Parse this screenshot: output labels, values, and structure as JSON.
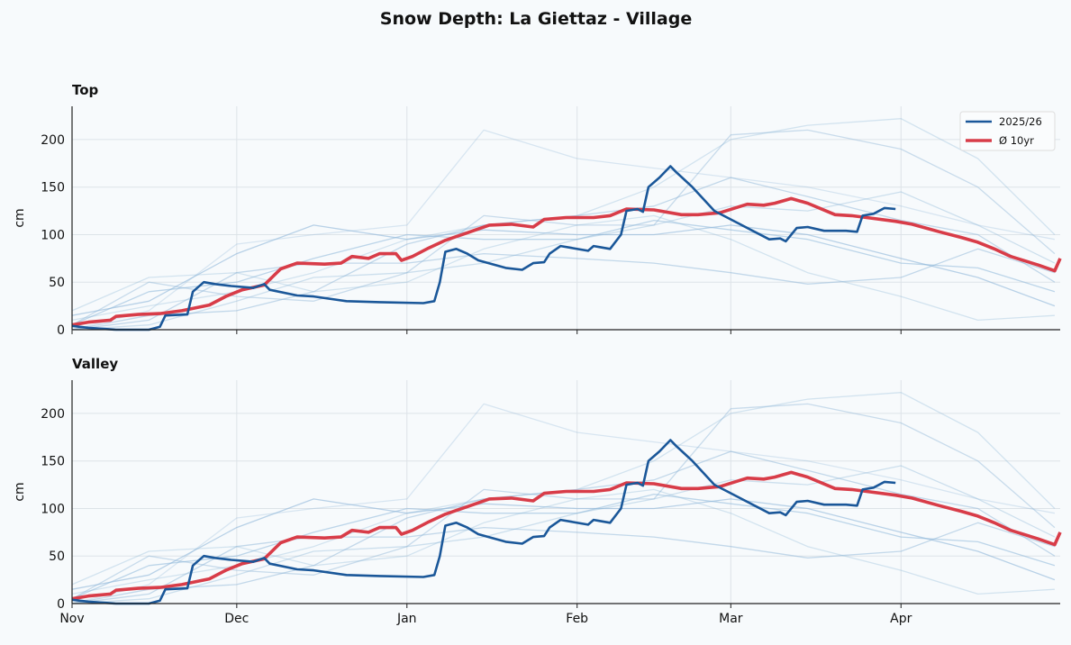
{
  "chart_data": {
    "type": "line",
    "title": "Snow Depth: La Giettaz - Village",
    "ylabel": "cm",
    "xlabel": "",
    "ylim": [
      0,
      235
    ],
    "xlim": [
      "2025-11-01",
      "2026-04-30"
    ],
    "yticks": [
      0,
      50,
      100,
      150,
      200
    ],
    "xticks": [
      {
        "date": "2025-11-01",
        "label": "Nov"
      },
      {
        "date": "2025-12-01",
        "label": "Dec"
      },
      {
        "date": "2026-01-01",
        "label": "Jan"
      },
      {
        "date": "2026-02-01",
        "label": "Feb"
      },
      {
        "date": "2026-03-01",
        "label": "Mar"
      },
      {
        "date": "2026-04-01",
        "label": "Apr"
      }
    ],
    "grid": true,
    "legend_position": "top-right",
    "panels": [
      {
        "title": "Top"
      },
      {
        "title": "Valley"
      }
    ],
    "colors": {
      "current": "#1a5799",
      "average": "#d83c48",
      "history": "#8db6d8",
      "grid": "#dde3e8"
    },
    "series": [
      {
        "name": "2025/26",
        "role": "current",
        "points": [
          [
            "2025-11-01",
            4
          ],
          [
            "2025-11-04",
            2
          ],
          [
            "2025-11-09",
            0
          ],
          [
            "2025-11-15",
            0
          ],
          [
            "2025-11-17",
            3
          ],
          [
            "2025-11-18",
            15
          ],
          [
            "2025-11-22",
            16
          ],
          [
            "2025-11-23",
            40
          ],
          [
            "2025-11-25",
            50
          ],
          [
            "2025-11-27",
            48
          ],
          [
            "2025-11-30",
            46
          ],
          [
            "2025-12-04",
            44
          ],
          [
            "2025-12-06",
            48
          ],
          [
            "2025-12-07",
            42
          ],
          [
            "2025-12-12",
            36
          ],
          [
            "2025-12-15",
            35
          ],
          [
            "2025-12-21",
            30
          ],
          [
            "2025-12-27",
            29
          ],
          [
            "2026-01-04",
            28
          ],
          [
            "2026-01-06",
            30
          ],
          [
            "2026-01-07",
            50
          ],
          [
            "2026-01-08",
            82
          ],
          [
            "2026-01-10",
            85
          ],
          [
            "2026-01-12",
            80
          ],
          [
            "2026-01-14",
            73
          ],
          [
            "2026-01-19",
            65
          ],
          [
            "2026-01-22",
            63
          ],
          [
            "2026-01-24",
            70
          ],
          [
            "2026-01-26",
            71
          ],
          [
            "2026-01-27",
            80
          ],
          [
            "2026-01-29",
            88
          ],
          [
            "2026-01-31",
            86
          ],
          [
            "2026-02-03",
            83
          ],
          [
            "2026-02-04",
            88
          ],
          [
            "2026-02-05",
            87
          ],
          [
            "2026-02-07",
            85
          ],
          [
            "2026-02-09",
            100
          ],
          [
            "2026-02-10",
            125
          ],
          [
            "2026-02-12",
            127
          ],
          [
            "2026-02-13",
            124
          ],
          [
            "2026-02-14",
            150
          ],
          [
            "2026-02-16",
            160
          ],
          [
            "2026-02-18",
            172
          ],
          [
            "2026-02-19",
            166
          ],
          [
            "2026-02-22",
            150
          ],
          [
            "2026-02-26",
            125
          ],
          [
            "2026-03-03",
            110
          ],
          [
            "2026-03-08",
            95
          ],
          [
            "2026-03-10",
            96
          ],
          [
            "2026-03-11",
            93
          ],
          [
            "2026-03-13",
            107
          ],
          [
            "2026-03-15",
            108
          ],
          [
            "2026-03-18",
            104
          ],
          [
            "2026-03-22",
            104
          ],
          [
            "2026-03-24",
            103
          ],
          [
            "2026-03-25",
            120
          ],
          [
            "2026-03-27",
            122
          ],
          [
            "2026-03-29",
            128
          ],
          [
            "2026-03-31",
            127
          ]
        ]
      },
      {
        "name": "Ø 10yr",
        "role": "average",
        "points": [
          [
            "2025-11-01",
            5
          ],
          [
            "2025-11-04",
            8
          ],
          [
            "2025-11-08",
            10
          ],
          [
            "2025-11-09",
            14
          ],
          [
            "2025-11-13",
            16
          ],
          [
            "2025-11-17",
            17
          ],
          [
            "2025-11-21",
            20
          ],
          [
            "2025-11-26",
            26
          ],
          [
            "2025-11-29",
            35
          ],
          [
            "2025-12-02",
            42
          ],
          [
            "2025-12-06",
            47
          ],
          [
            "2025-12-09",
            64
          ],
          [
            "2025-12-12",
            70
          ],
          [
            "2025-12-17",
            69
          ],
          [
            "2025-12-20",
            70
          ],
          [
            "2025-12-22",
            77
          ],
          [
            "2025-12-25",
            75
          ],
          [
            "2025-12-27",
            80
          ],
          [
            "2025-12-30",
            80
          ],
          [
            "2025-12-31",
            73
          ],
          [
            "2026-01-02",
            77
          ],
          [
            "2026-01-05",
            86
          ],
          [
            "2026-01-08",
            94
          ],
          [
            "2026-01-12",
            102
          ],
          [
            "2026-01-16",
            110
          ],
          [
            "2026-01-20",
            111
          ],
          [
            "2026-01-24",
            108
          ],
          [
            "2026-01-26",
            116
          ],
          [
            "2026-01-30",
            118
          ],
          [
            "2026-02-04",
            118
          ],
          [
            "2026-02-07",
            120
          ],
          [
            "2026-02-10",
            127
          ],
          [
            "2026-02-15",
            126
          ],
          [
            "2026-02-20",
            121
          ],
          [
            "2026-02-23",
            121
          ],
          [
            "2026-02-27",
            123
          ],
          [
            "2026-03-04",
            132
          ],
          [
            "2026-03-07",
            131
          ],
          [
            "2026-03-09",
            133
          ],
          [
            "2026-03-12",
            138
          ],
          [
            "2026-03-15",
            133
          ],
          [
            "2026-03-20",
            121
          ],
          [
            "2026-03-23",
            120
          ],
          [
            "2026-03-27",
            117
          ],
          [
            "2026-03-31",
            114
          ],
          [
            "2026-04-03",
            111
          ],
          [
            "2026-04-08",
            103
          ],
          [
            "2026-04-12",
            97
          ],
          [
            "2026-04-15",
            92
          ],
          [
            "2026-04-18",
            85
          ],
          [
            "2026-04-21",
            77
          ],
          [
            "2026-04-26",
            68
          ],
          [
            "2026-04-29",
            62
          ],
          [
            "2026-04-30",
            75
          ]
        ]
      }
    ],
    "history_dates": [
      "2025-11-01",
      "2025-11-15",
      "2025-12-01",
      "2025-12-15",
      "2026-01-01",
      "2026-01-15",
      "2026-02-01",
      "2026-02-15",
      "2026-03-01",
      "2026-03-15",
      "2026-04-01",
      "2026-04-15",
      "2026-04-29"
    ],
    "history": [
      [
        10,
        25,
        40,
        60,
        95,
        110,
        120,
        150,
        200,
        215,
        222,
        180,
        100
      ],
      [
        5,
        50,
        35,
        30,
        60,
        120,
        110,
        110,
        205,
        210,
        190,
        150,
        80
      ],
      [
        0,
        20,
        90,
        100,
        110,
        210,
        180,
        170,
        160,
        150,
        130,
        110,
        95
      ],
      [
        15,
        30,
        80,
        110,
        95,
        105,
        100,
        100,
        110,
        100,
        75,
        55,
        25
      ],
      [
        0,
        10,
        60,
        70,
        70,
        80,
        75,
        70,
        60,
        48,
        55,
        85,
        60
      ],
      [
        5,
        40,
        50,
        75,
        100,
        95,
        95,
        115,
        105,
        95,
        70,
        65,
        40
      ],
      [
        0,
        5,
        30,
        55,
        60,
        70,
        95,
        110,
        130,
        125,
        145,
        110,
        70
      ],
      [
        20,
        55,
        60,
        40,
        50,
        85,
        110,
        120,
        95,
        60,
        35,
        10,
        15
      ],
      [
        0,
        15,
        20,
        40,
        90,
        110,
        120,
        130,
        160,
        140,
        115,
        100,
        50
      ]
    ]
  }
}
